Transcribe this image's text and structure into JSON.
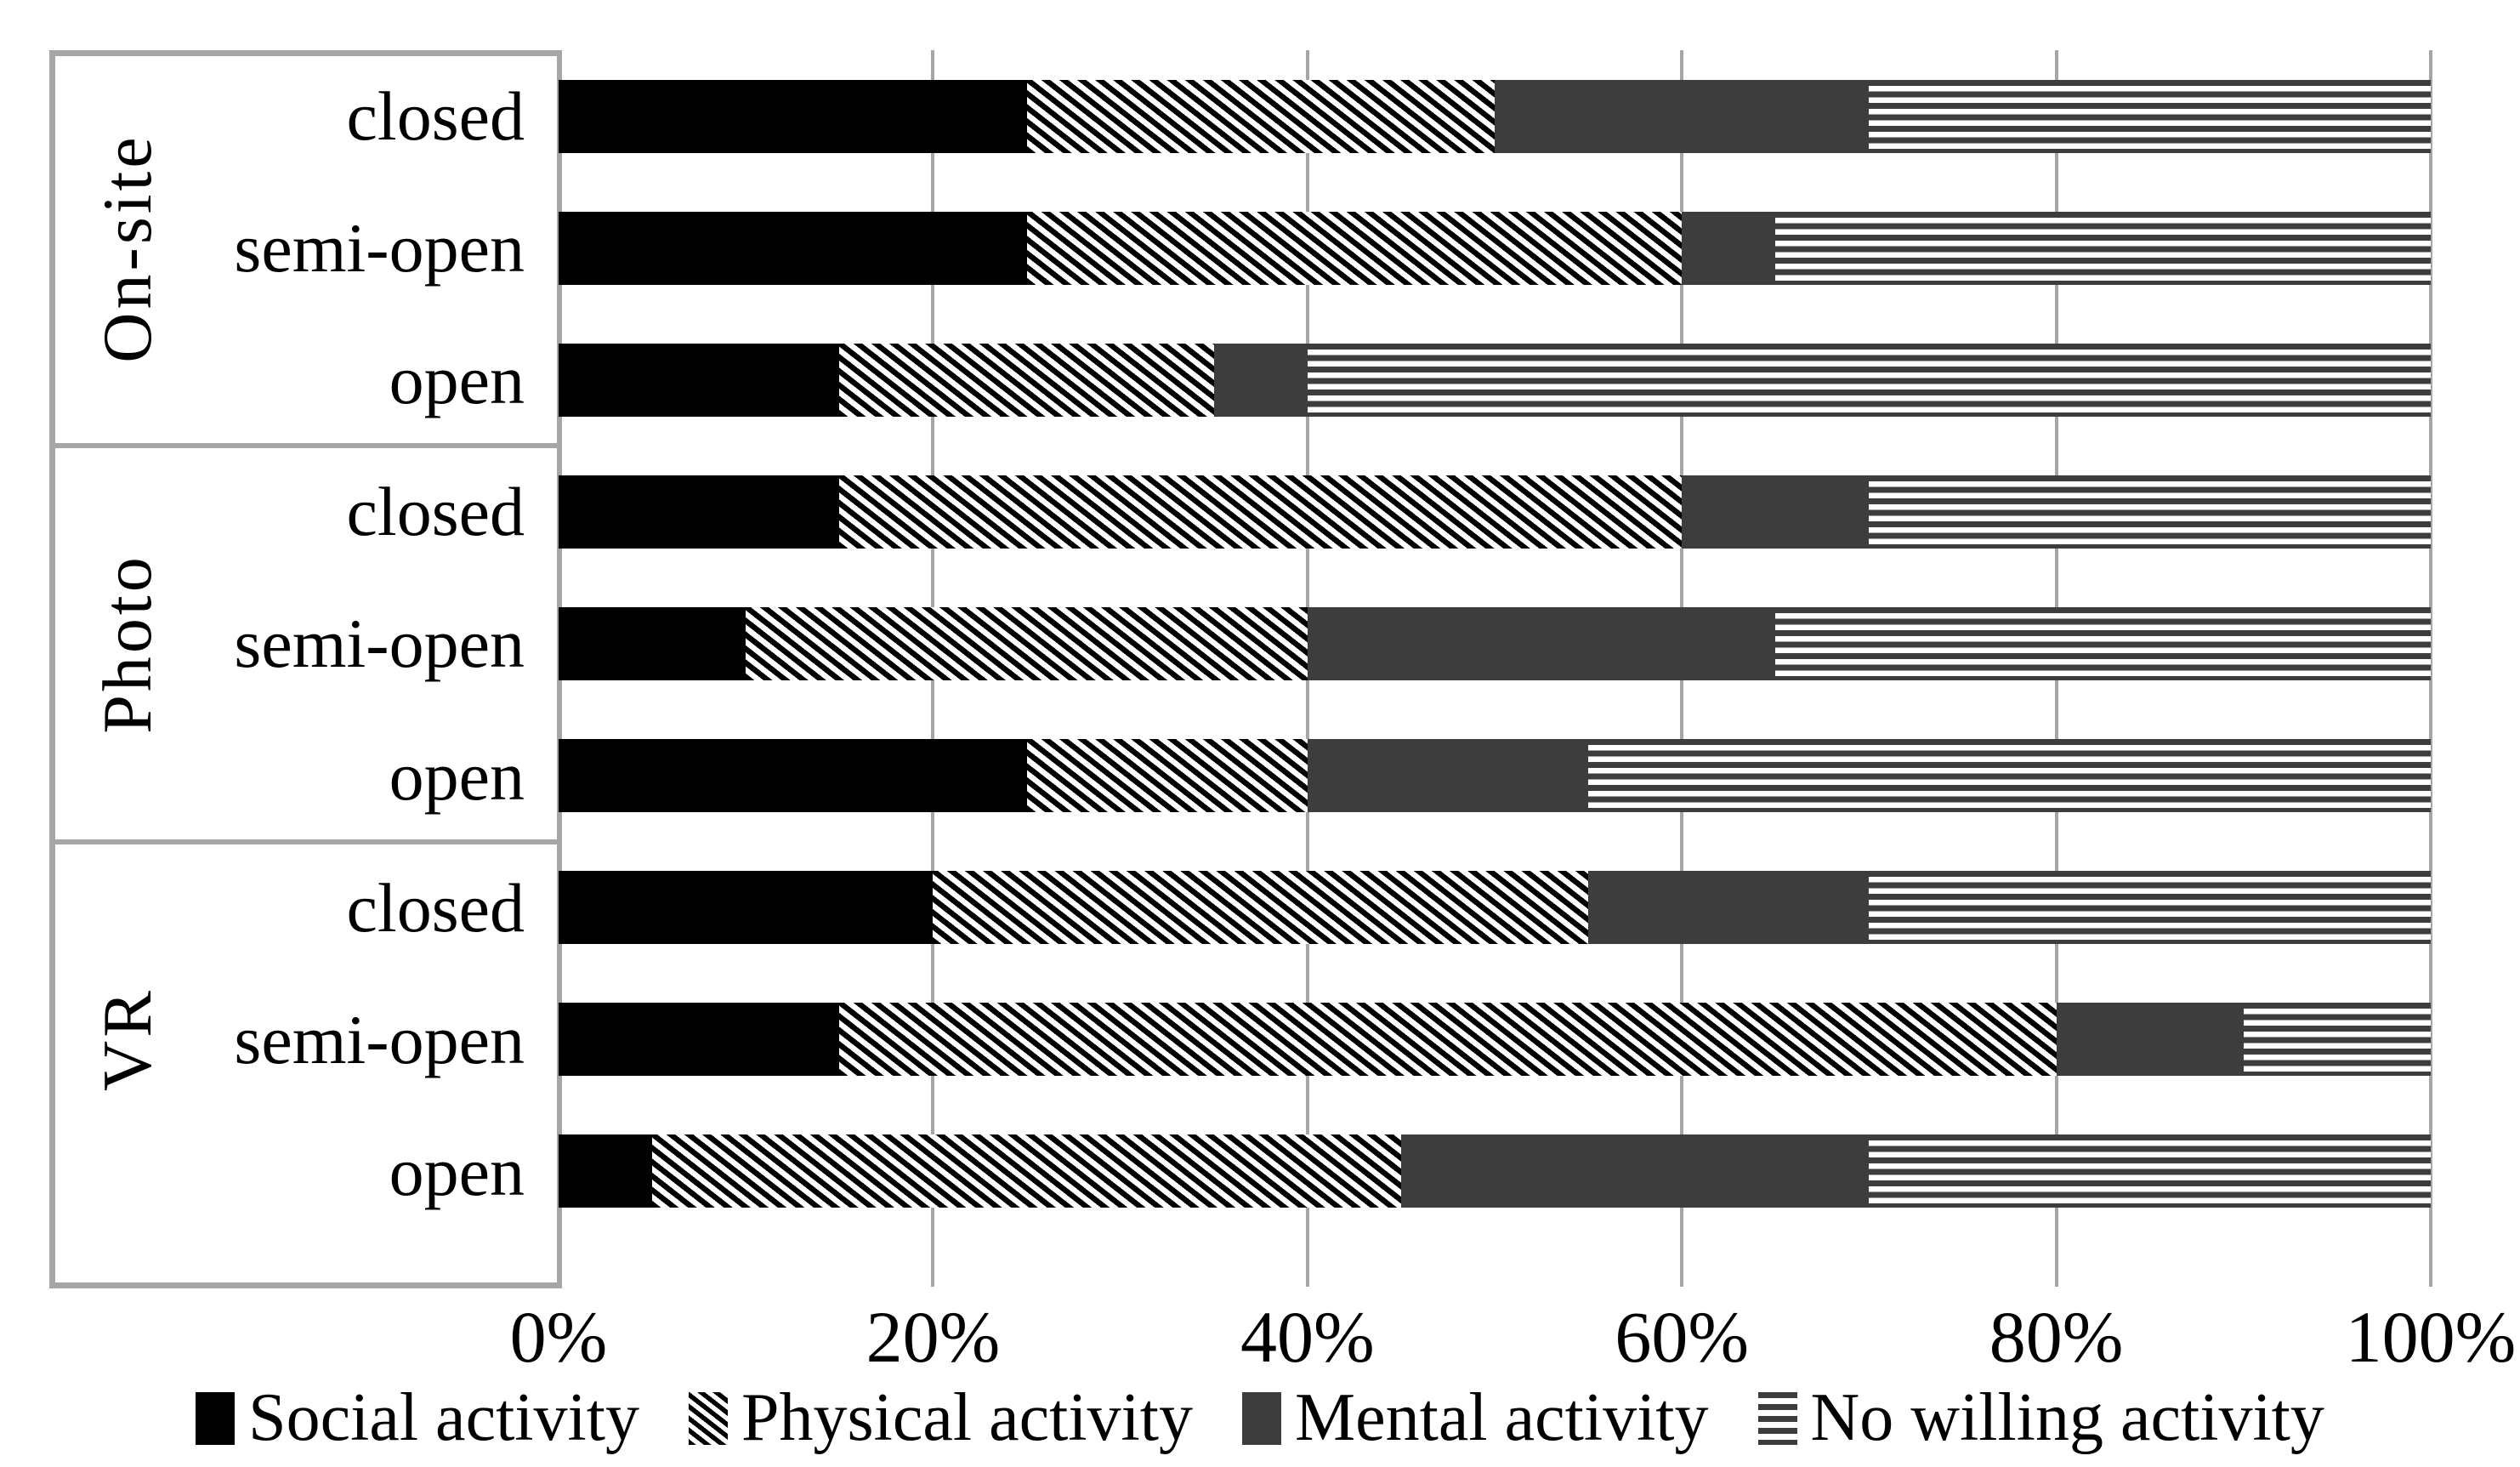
{
  "chart_data": {
    "type": "bar",
    "orientation": "horizontal",
    "stacked": true,
    "unit": "percent",
    "title": "",
    "xlabel": "",
    "ylabel": "",
    "xlim": [
      0,
      100
    ],
    "x_tick_labels": [
      "0%",
      "20%",
      "40%",
      "60%",
      "80%",
      "100%"
    ],
    "grid": true,
    "legend_position": "bottom",
    "series": [
      {
        "name": "Social activity",
        "pattern": "solid-black",
        "color": "#000000"
      },
      {
        "name": "Physical activity",
        "pattern": "diagonal-hatch",
        "color": "#000000"
      },
      {
        "name": "Mental activity",
        "pattern": "solid-dark-gray",
        "color": "#3d3d3d"
      },
      {
        "name": "No willing activity",
        "pattern": "horizontal-lines",
        "color": "#3d3d3d"
      }
    ],
    "groups": [
      {
        "label": "On-site",
        "rows": [
          {
            "label": "closed",
            "values": [
              25,
              25,
              20,
              30
            ]
          },
          {
            "label": "semi-open",
            "values": [
              25,
              35,
              5,
              35
            ]
          },
          {
            "label": "open",
            "values": [
              15,
              20,
              5,
              60
            ]
          }
        ]
      },
      {
        "label": "Photo",
        "rows": [
          {
            "label": "closed",
            "values": [
              15,
              45,
              10,
              30
            ]
          },
          {
            "label": "semi-open",
            "values": [
              10,
              30,
              25,
              35
            ]
          },
          {
            "label": "open",
            "values": [
              25,
              15,
              15,
              45
            ]
          }
        ]
      },
      {
        "label": "VR",
        "rows": [
          {
            "label": "closed",
            "values": [
              20,
              35,
              15,
              30
            ]
          },
          {
            "label": "semi-open",
            "values": [
              15,
              65,
              10,
              10
            ]
          },
          {
            "label": "open",
            "values": [
              5,
              40,
              25,
              30
            ]
          }
        ]
      }
    ]
  },
  "colors": {
    "series_black": "#000000",
    "series_dark_gray": "#3d3d3d",
    "grid_gray": "#a6a6a6",
    "background": "#ffffff"
  }
}
